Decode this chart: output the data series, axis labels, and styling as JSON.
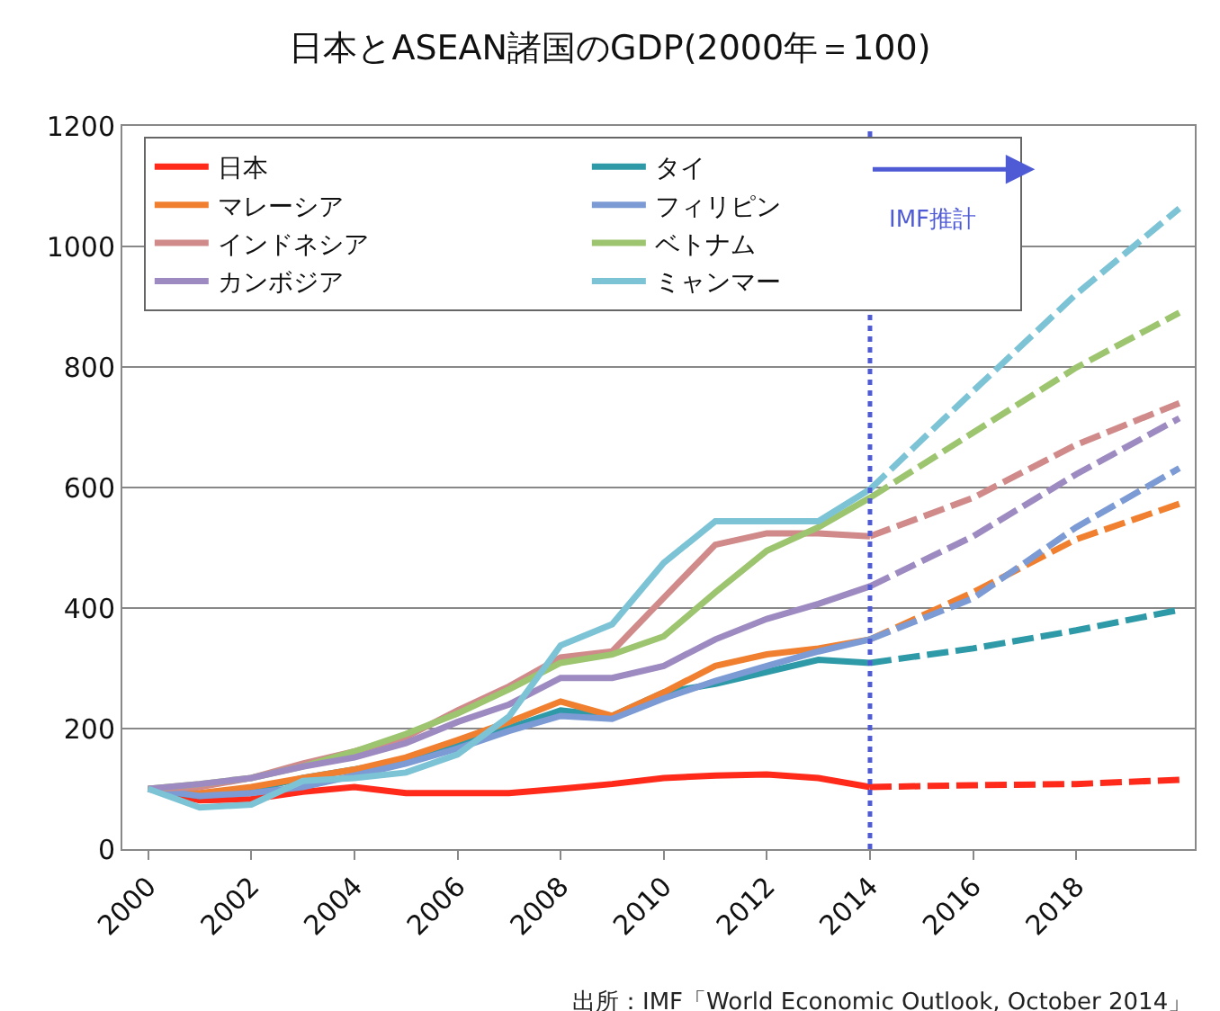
{
  "chart_data": {
    "type": "line",
    "title": "日本とASEAN諸国のGDP(2000年＝100)",
    "x": [
      2000,
      2001,
      2002,
      2003,
      2004,
      2005,
      2006,
      2007,
      2008,
      2009,
      2010,
      2011,
      2012,
      2013,
      2014
    ],
    "series": [
      {
        "name": "日本",
        "color": "#ff2a1a",
        "values": [
          100,
          81,
          83,
          95,
          103,
          93,
          93,
          93,
          100,
          108,
          118,
          122,
          124,
          118,
          103
        ]
      },
      {
        "name": "タイ",
        "color": "#2e9aa8",
        "values": [
          100,
          88,
          98,
          118,
          132,
          147,
          176,
          201,
          230,
          221,
          260,
          274,
          294,
          314,
          309
        ]
      },
      {
        "name": "マレーシア",
        "color": "#f08030",
        "values": [
          100,
          93,
          103,
          118,
          132,
          152,
          181,
          211,
          245,
          221,
          260,
          304,
          323,
          333,
          348
        ]
      },
      {
        "name": "フィリピン",
        "color": "#7c9ad4",
        "values": [
          100,
          88,
          93,
          103,
          122,
          142,
          167,
          196,
          221,
          216,
          250,
          279,
          304,
          328,
          348
        ]
      },
      {
        "name": "インドネシア",
        "color": "#d08a8a",
        "values": [
          100,
          103,
          118,
          142,
          162,
          186,
          230,
          270,
          318,
          328,
          417,
          505,
          524,
          524,
          519
        ]
      },
      {
        "name": "ベトナム",
        "color": "#9dc46e",
        "values": [
          100,
          108,
          118,
          137,
          162,
          191,
          225,
          265,
          309,
          323,
          353,
          426,
          495,
          534,
          583
        ]
      },
      {
        "name": "カンボジア",
        "color": "#9d8ac0",
        "values": [
          100,
          108,
          118,
          137,
          152,
          176,
          211,
          240,
          284,
          284,
          304,
          348,
          382,
          407,
          436
        ]
      },
      {
        "name": "ミャンマー",
        "color": "#7cc3d6",
        "values": [
          100,
          69,
          74,
          113,
          118,
          127,
          157,
          220,
          338,
          373,
          475,
          544,
          544,
          544,
          597
        ]
      },
      {
        "color": "#ff2a1a",
        "line_style": "dashed",
        "x": [
          2014,
          2016,
          2018,
          2020
        ],
        "values": [
          103,
          106,
          108,
          115
        ]
      },
      {
        "color": "#2e9aa8",
        "line_style": "dashed",
        "x": [
          2014,
          2016,
          2018,
          2020
        ],
        "values": [
          309,
          333,
          363,
          397
        ]
      },
      {
        "color": "#f08030",
        "line_style": "dashed",
        "x": [
          2014,
          2016,
          2018,
          2020
        ],
        "values": [
          348,
          426,
          514,
          573
        ]
      },
      {
        "color": "#7c9ad4",
        "line_style": "dashed",
        "x": [
          2014,
          2016,
          2018,
          2020
        ],
        "values": [
          348,
          416,
          534,
          632
        ]
      },
      {
        "color": "#d08a8a",
        "line_style": "dashed",
        "x": [
          2014,
          2016,
          2018,
          2020
        ],
        "values": [
          519,
          583,
          671,
          740
        ]
      },
      {
        "color": "#9dc46e",
        "line_style": "dashed",
        "x": [
          2014,
          2016,
          2018,
          2020
        ],
        "values": [
          583,
          691,
          799,
          890
        ]
      },
      {
        "color": "#9d8ac0",
        "line_style": "dashed",
        "x": [
          2014,
          2016,
          2018,
          2020
        ],
        "values": [
          436,
          519,
          622,
          715
        ]
      },
      {
        "color": "#7cc3d6",
        "line_style": "dashed",
        "x": [
          2014,
          2016,
          2018,
          2020
        ],
        "values": [
          597,
          760,
          921,
          1063
        ]
      }
    ],
    "xlim": [
      1999.5,
      2020.3
    ],
    "xticks": [
      2000,
      2002,
      2004,
      2006,
      2008,
      2010,
      2012,
      2014,
      2016,
      2018
    ],
    "ylim": [
      0,
      1200
    ],
    "yticks": [
      0,
      200,
      400,
      600,
      800,
      1000,
      1200
    ],
    "grid": "y",
    "legend": "top left",
    "marker": "none",
    "line_style": "solid",
    "ref_lines": [
      {
        "axis": "x",
        "value": 2014,
        "label": "IMF推計",
        "color": "#4f5bd5",
        "line_style": "dotted"
      }
    ],
    "annotations": [
      "出所：IMF「World Economic Outlook, October 2014」"
    ]
  }
}
